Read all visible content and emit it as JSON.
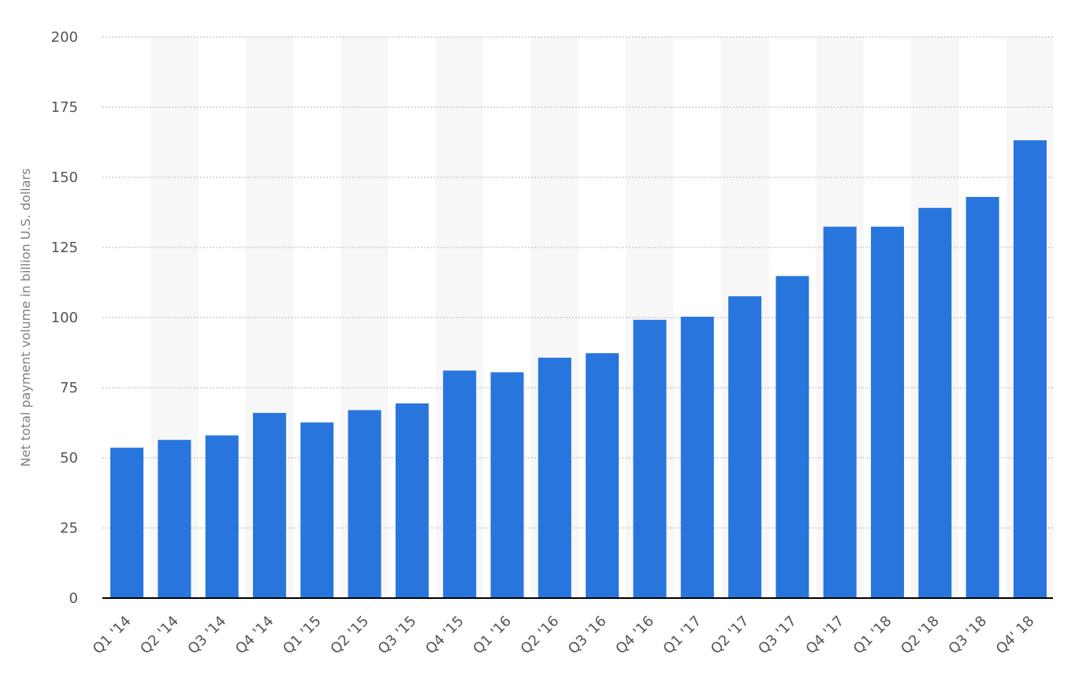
{
  "chart_data": {
    "type": "bar",
    "title": "",
    "xlabel": "",
    "ylabel": "Net total payment volume in billion U.S. dollars",
    "ylim": [
      0,
      200
    ],
    "yticks": [
      0,
      25,
      50,
      75,
      100,
      125,
      150,
      175,
      200
    ],
    "categories": [
      "Q1 '14",
      "Q2 '14",
      "Q3 '14",
      "Q4 '14",
      "Q1 '15",
      "Q2 '15",
      "Q3 '15",
      "Q4 '15",
      "Q1 '16",
      "Q2 '16",
      "Q3 '16",
      "Q4 '16",
      "Q1 '17",
      "Q2 '17",
      "Q3 '17",
      "Q4 '17",
      "Q1 '18",
      "Q2 '18",
      "Q3 '18",
      "Q4' 18"
    ],
    "values": [
      53.6,
      56.4,
      58,
      66,
      62.6,
      67,
      69.4,
      81.1,
      80.5,
      85.7,
      87.3,
      99.2,
      100.3,
      107.6,
      114.8,
      132.4,
      132.4,
      139.1,
      143,
      163.2
    ],
    "grid": true,
    "alternating_column_shading": true,
    "colors": {
      "bar": "#2876dd",
      "band": "#f7f7f7",
      "grid": "#b5b5b5",
      "axis": "#000000"
    }
  }
}
